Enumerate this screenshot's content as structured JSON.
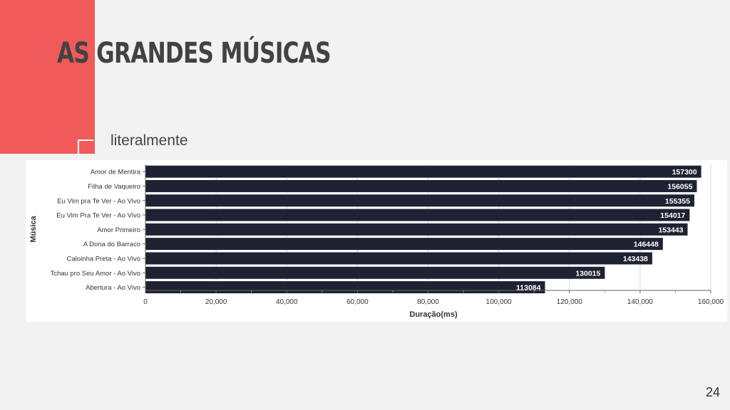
{
  "slide": {
    "title": "AS GRANDES MÚSICAS",
    "subtitle": "literalmente",
    "page_number": "24",
    "accent_color": "#f05a5a"
  },
  "chart_data": {
    "type": "bar",
    "orientation": "horizontal",
    "title": "",
    "xlabel": "Duração(ms)",
    "ylabel": "Música",
    "xlim": [
      0,
      160000
    ],
    "x_ticks": [
      "0",
      "20,000",
      "40,000",
      "60,000",
      "80,000",
      "100,000",
      "120,000",
      "140,000",
      "160,000"
    ],
    "bar_color": "#1f2233",
    "grid": true,
    "categories": [
      "Amor de Mentira",
      "Filha de Vaqueiro",
      "Eu Vim pra Te Ver - Ao Vivo",
      "Eu Vim Pra Te Ver - Ao Vivo",
      "Amor Primeiro",
      "A Dona do Barraco",
      "Caloinha Preta - Ao Vivo",
      "Tchau pro Seu Amor - Ao Vivo",
      "Abertura - Ao Vivo"
    ],
    "values": [
      157300,
      156055,
      155355,
      154017,
      153443,
      146448,
      143438,
      130015,
      113084
    ]
  }
}
